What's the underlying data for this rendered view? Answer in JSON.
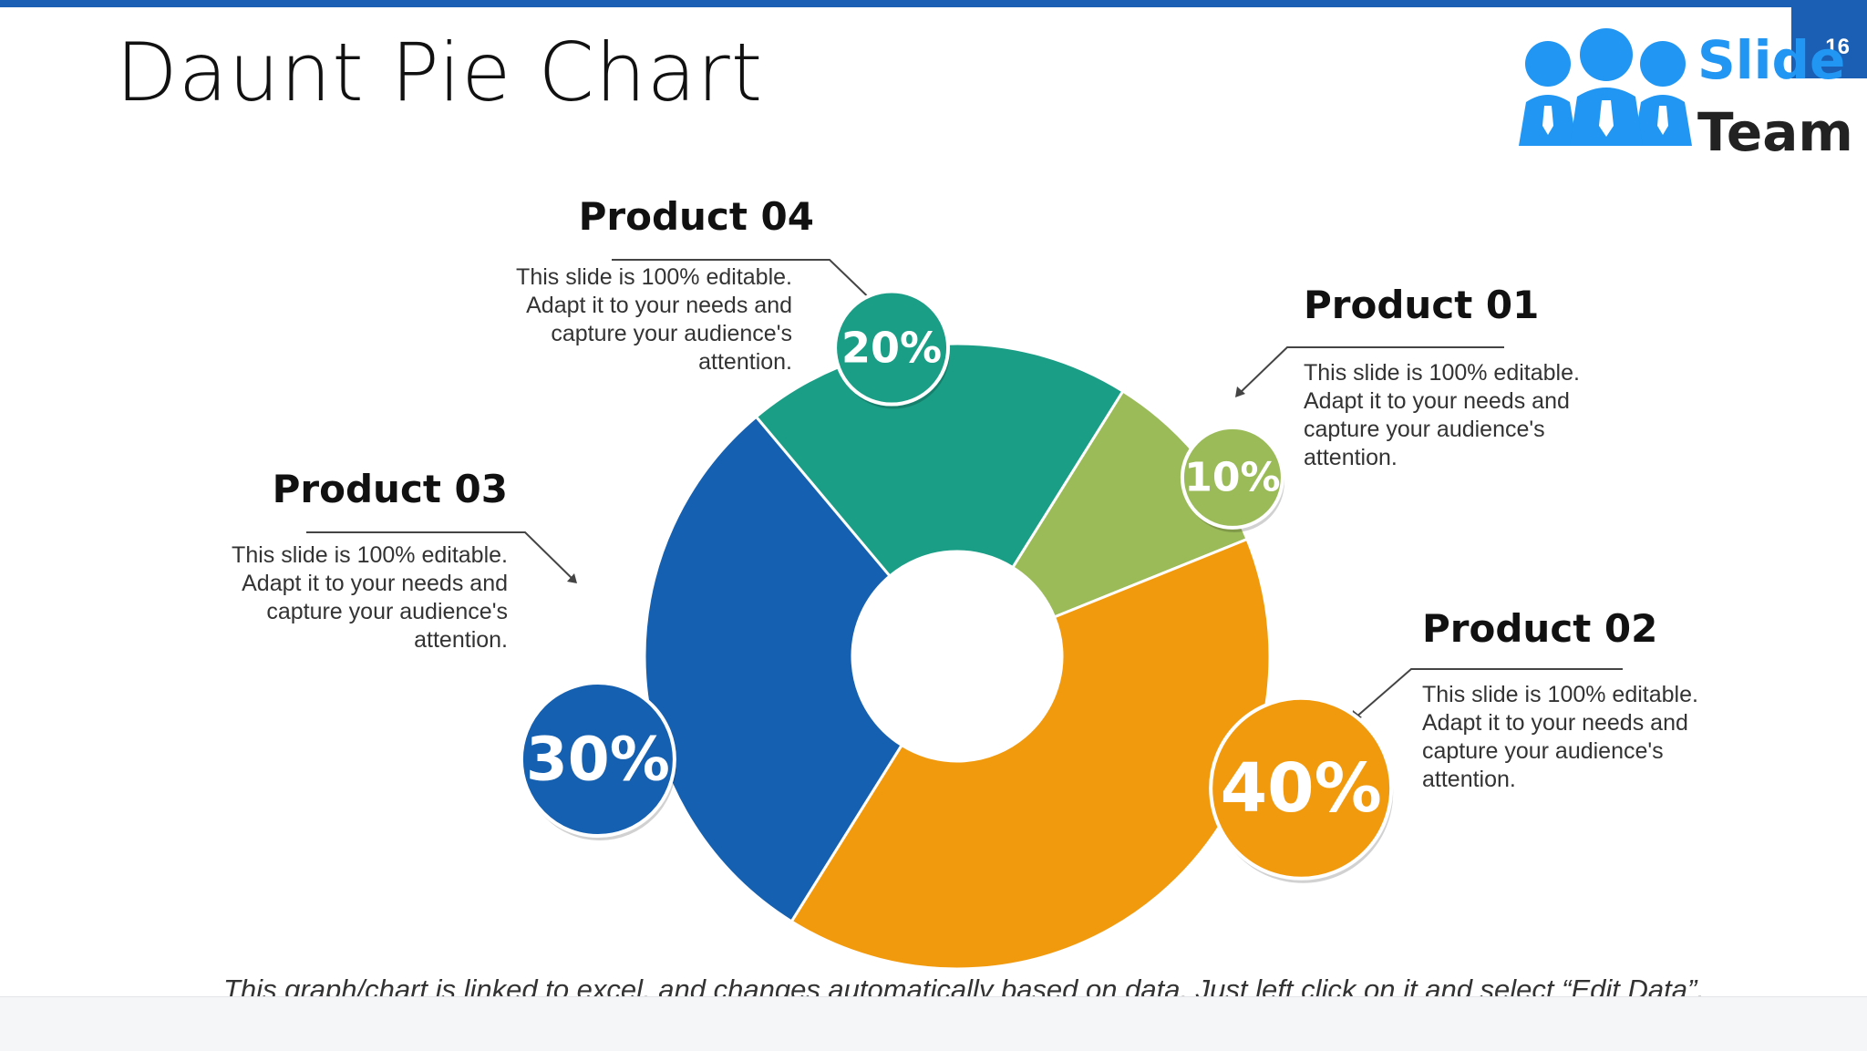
{
  "slide": {
    "title": "Daunt Pie Chart",
    "page_number": "16",
    "footnote": "This graph/chart is linked to excel, and changes automatically based on data. Just left click on it and select “Edit Data”."
  },
  "logo": {
    "line1": "Slide",
    "line2": "Team"
  },
  "products": [
    {
      "name": "Product 01",
      "description": "This slide is 100% editable. Adapt it to your needs and capture your audience's attention."
    },
    {
      "name": "Product 02",
      "description": "This slide is 100% editable. Adapt it to your needs and capture your audience's attention."
    },
    {
      "name": "Product 03",
      "description": "This slide is 100% editable. Adapt it to your needs and capture your audience's attention."
    },
    {
      "name": "Product 04",
      "description": "This slide is 100% editable. Adapt it to your needs and capture your audience's attention."
    }
  ],
  "chart_data": {
    "type": "pie",
    "title": "",
    "categories": [
      "Product 01",
      "Product 02",
      "Product 03",
      "Product 04"
    ],
    "values": [
      10,
      40,
      30,
      20
    ],
    "labels": [
      "10%",
      "40%",
      "30%",
      "20%"
    ],
    "colors": [
      "#9bbb59",
      "#f29a0e",
      "#1560b0",
      "#1a9e86"
    ],
    "donut": true,
    "legend": "none"
  }
}
